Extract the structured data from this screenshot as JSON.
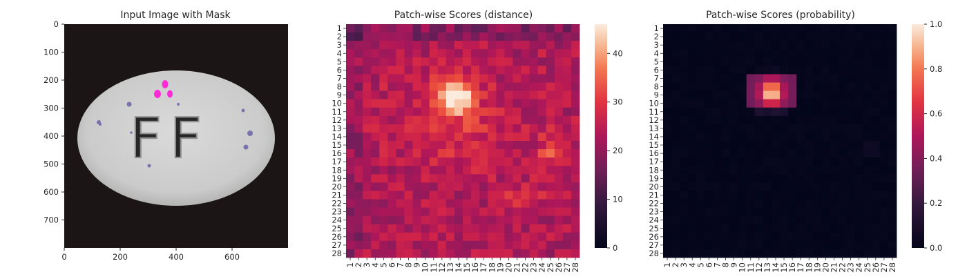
{
  "chart_data": [
    {
      "type": "image",
      "title": "Input Image with Mask",
      "xticks": [
        0,
        200,
        400,
        600
      ],
      "yticks": [
        0,
        100,
        200,
        300,
        400,
        500,
        600,
        700
      ],
      "xlim": [
        0,
        800
      ],
      "ylim": [
        0,
        800
      ],
      "image_content": {
        "object": "white oval pill with embossed letters",
        "emboss_text": "FF",
        "pill_color": "#cfd0cf",
        "background_color": "#1a1414",
        "mask_color": "#ff2bd6"
      }
    },
    {
      "type": "heatmap",
      "title": "Patch-wise Scores (distance)",
      "rows": 28,
      "cols": 28,
      "row_labels": [
        "1",
        "2",
        "3",
        "4",
        "5",
        "6",
        "7",
        "8",
        "9",
        "10",
        "11",
        "12",
        "13",
        "14",
        "15",
        "16",
        "17",
        "18",
        "19",
        "20",
        "21",
        "22",
        "23",
        "24",
        "25",
        "26",
        "27",
        "28"
      ],
      "col_labels": [
        "1",
        "2",
        "3",
        "4",
        "5",
        "6",
        "7",
        "8",
        "9",
        "10",
        "11",
        "12",
        "13",
        "14",
        "15",
        "16",
        "17",
        "18",
        "19",
        "20",
        "21",
        "22",
        "23",
        "24",
        "25",
        "26",
        "27",
        "28"
      ],
      "colormap": "rocket",
      "vmin": 0,
      "vmax": 46,
      "colorbar_ticks": [
        0,
        10,
        20,
        30,
        40
      ],
      "hotspots": [
        {
          "row": 9,
          "col": 13,
          "value": 46
        },
        {
          "row": 16,
          "col": 26,
          "value": 33
        },
        {
          "row": 22,
          "col": 22,
          "value": 31
        }
      ]
    },
    {
      "type": "heatmap",
      "title": "Patch-wise Scores (probability)",
      "rows": 28,
      "cols": 28,
      "row_labels": [
        "1",
        "2",
        "3",
        "4",
        "5",
        "6",
        "7",
        "8",
        "9",
        "10",
        "11",
        "12",
        "13",
        "14",
        "15",
        "16",
        "17",
        "18",
        "19",
        "20",
        "21",
        "22",
        "23",
        "24",
        "25",
        "26",
        "27",
        "28"
      ],
      "col_labels": [
        "1",
        "2",
        "3",
        "4",
        "5",
        "6",
        "7",
        "8",
        "9",
        "10",
        "11",
        "12",
        "13",
        "14",
        "15",
        "16",
        "17",
        "18",
        "19",
        "20",
        "21",
        "22",
        "23",
        "24",
        "25",
        "26",
        "27",
        "28"
      ],
      "colormap": "rocket",
      "vmin": 0.0,
      "vmax": 1.0,
      "colorbar_ticks": [
        "0.0",
        "0.2",
        "0.4",
        "0.6",
        "0.8",
        "1.0"
      ],
      "hotspots": [
        {
          "row": 9,
          "col": 13,
          "value": 1.0
        }
      ]
    }
  ]
}
